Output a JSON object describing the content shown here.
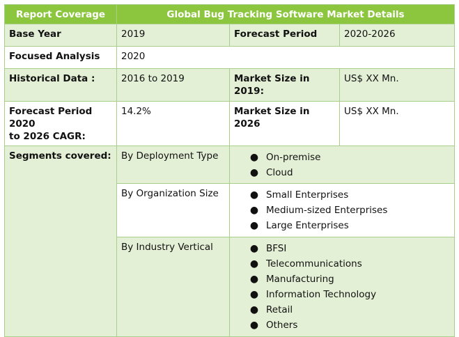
{
  "header": {
    "col1": "Report Coverage",
    "col2": "Global Bug Tracking Software Market Details"
  },
  "rows": {
    "base_year": {
      "label": "Base Year",
      "value": "2019",
      "label2": "Forecast Period",
      "value2": "2020-2026"
    },
    "focused": {
      "label": "Focused Analysis",
      "value": "2020"
    },
    "historical": {
      "label": "Historical Data :",
      "value": "2016 to 2019",
      "label2": "Market Size in 2019:",
      "value2": "US$ XX Mn."
    },
    "cagr": {
      "label": "Forecast Period 2020 to 2026 CAGR:",
      "label_line1": "Forecast Period 2020",
      "label_line2": "to 2026 CAGR:",
      "value": "14.2%",
      "label2": "Market Size in 2026",
      "value2": "US$ XX Mn."
    }
  },
  "segments": {
    "label": "Segments covered:",
    "groups": [
      {
        "name": "By Deployment Type",
        "items": [
          "On-premise",
          "Cloud"
        ]
      },
      {
        "name": "By Organization Size",
        "items": [
          "Small Enterprises",
          "Medium-sized Enterprises",
          "Large Enterprises"
        ]
      },
      {
        "name": "By Industry Vertical",
        "items": [
          "BFSI",
          "Telecommunications",
          "Manufacturing",
          "Information Technology",
          "Retail",
          "Others"
        ]
      }
    ]
  },
  "bullet_glyph": "●"
}
